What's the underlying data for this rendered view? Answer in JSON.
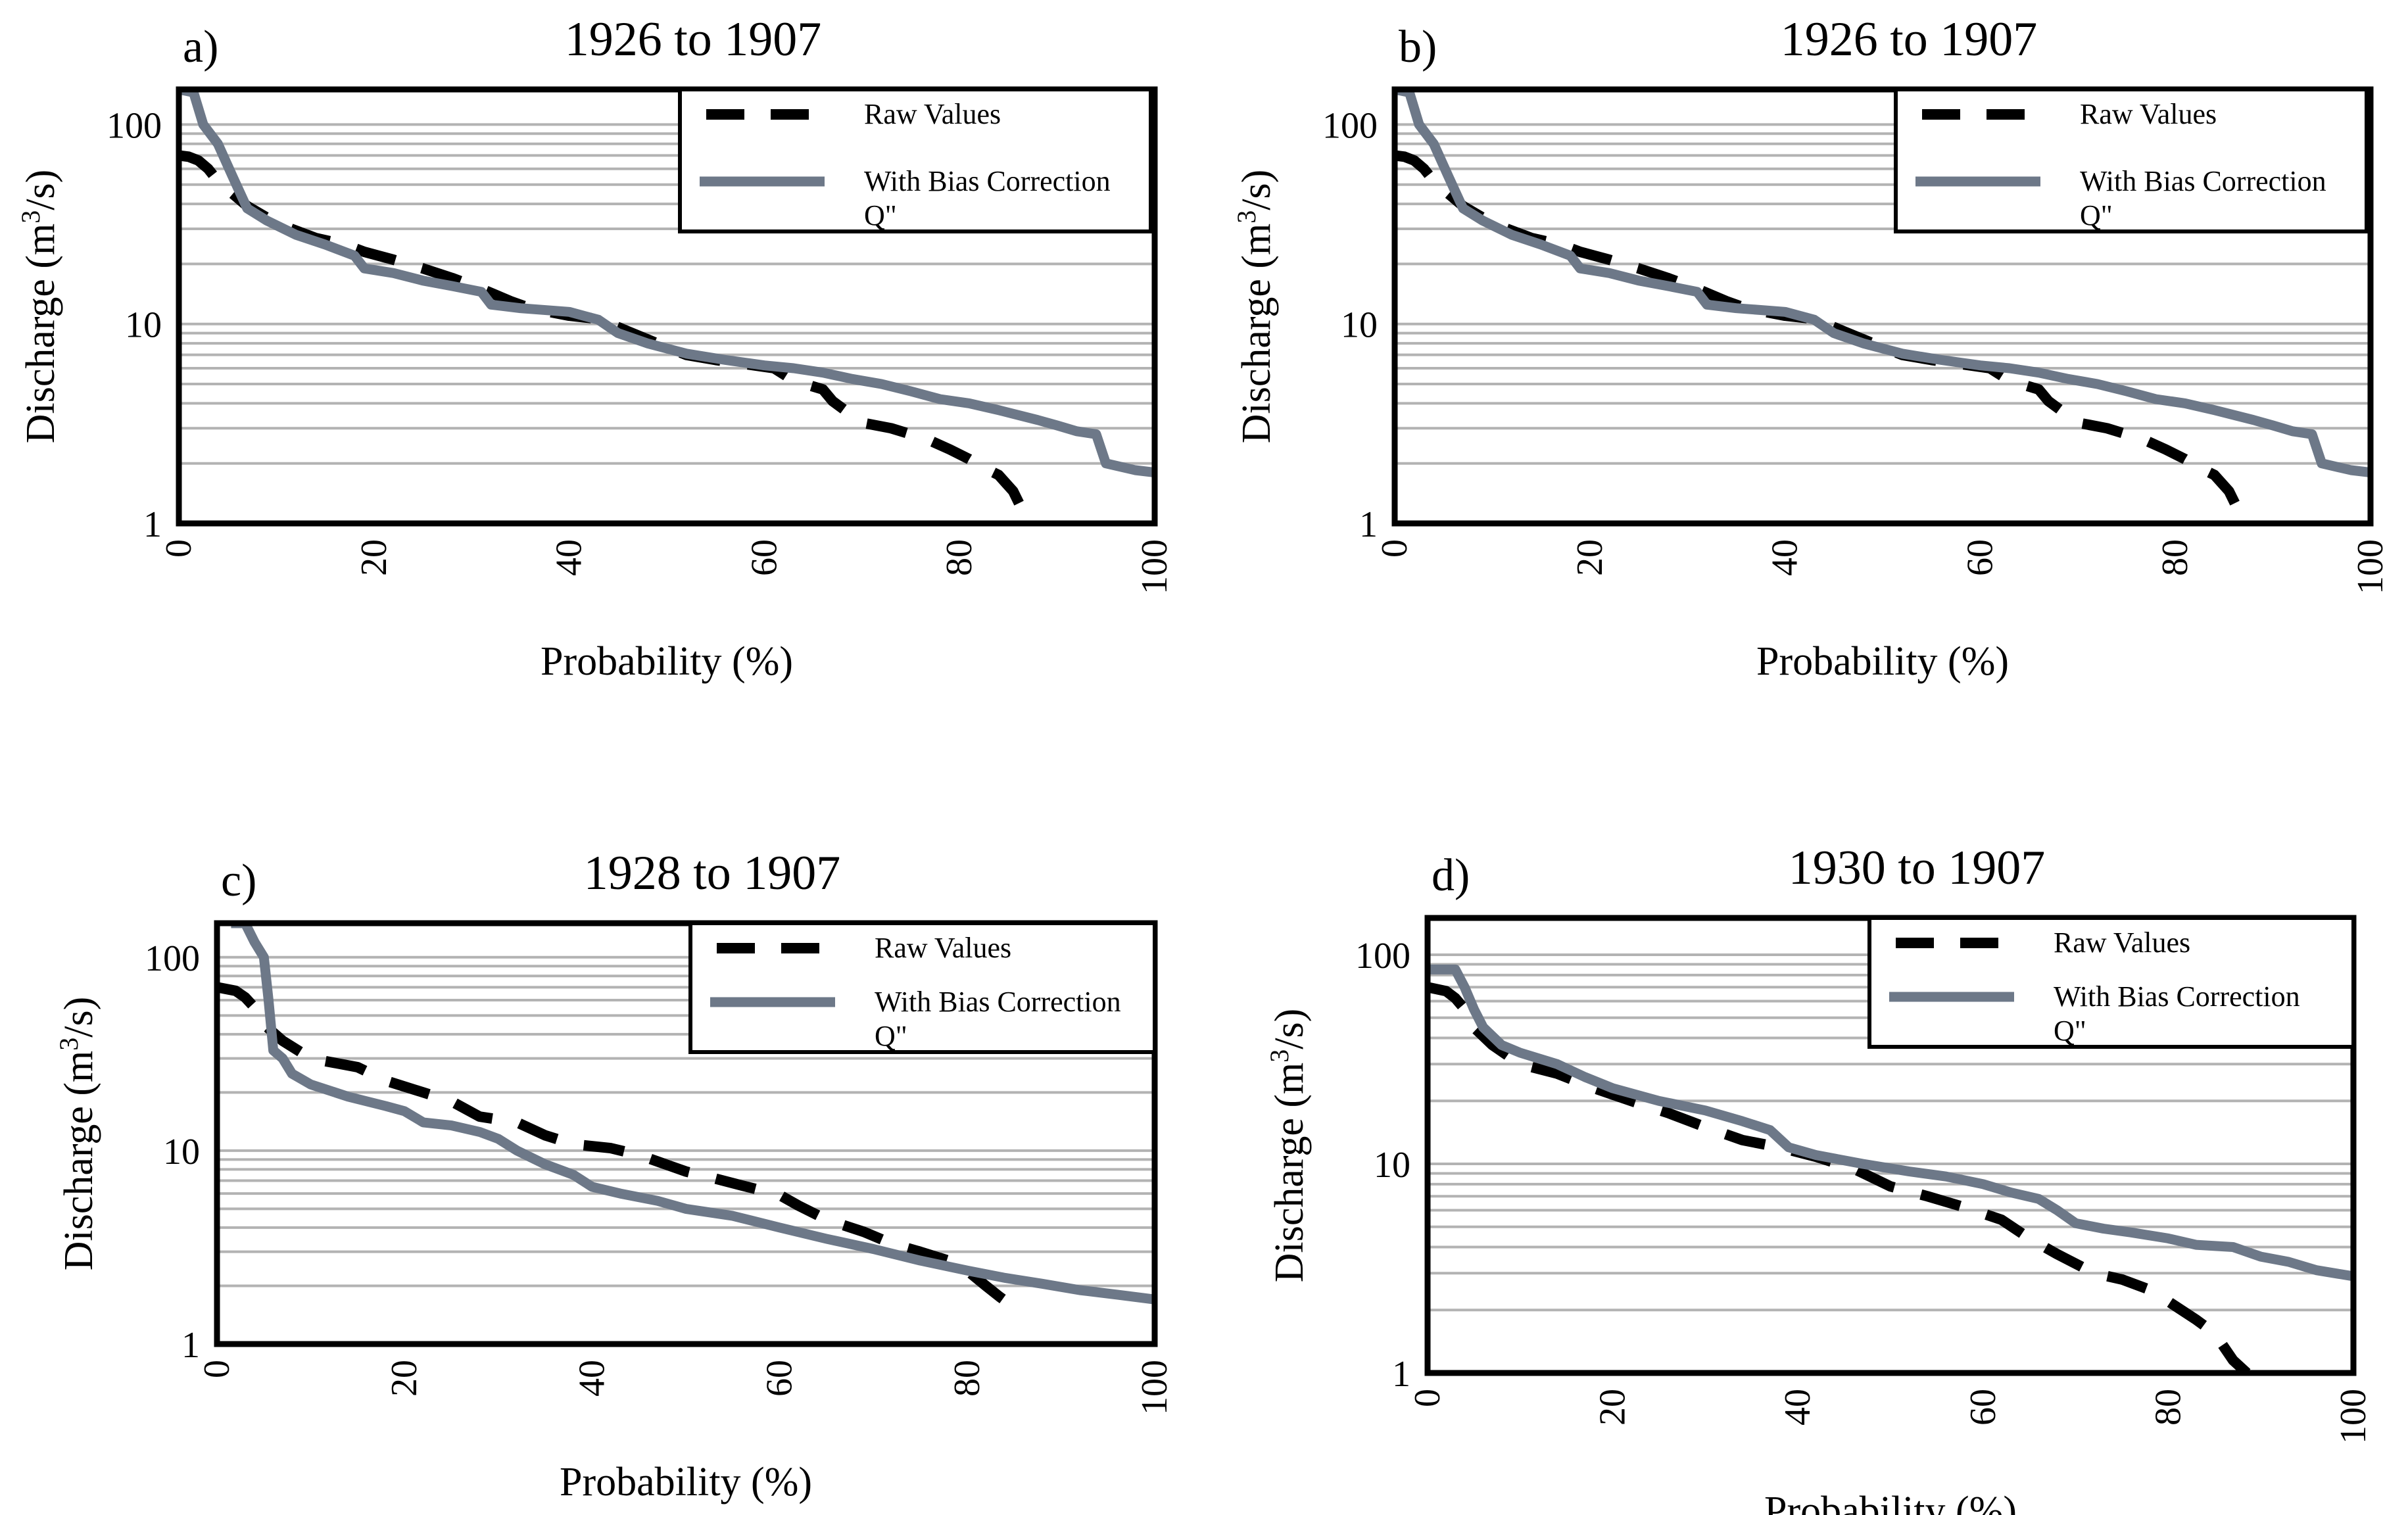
{
  "chart_data": [
    {
      "type": "line",
      "panel_label": "a)",
      "title": "1926 to 1907",
      "xlabel": "Probability (%)",
      "ylabel": "Discharge (m3/s)",
      "ylabel_parts": {
        "base": "Discharge (m",
        "sup": "3",
        "tail": "/s)"
      },
      "xlim": [
        0,
        100
      ],
      "ylim": [
        1,
        150
      ],
      "yscale": "log",
      "xticks": [
        "0",
        "20",
        "40",
        "60",
        "80",
        "100"
      ],
      "yticks": [
        "1",
        "10",
        "100"
      ],
      "grid": true,
      "legend_position": "top-right",
      "legend": {
        "raw": "Raw Values",
        "corrected": "With Bias Correction",
        "corrected_sub": "Q\""
      },
      "series": [
        {
          "name": "Raw Values",
          "style": "dashed",
          "color": "#000000",
          "x": [
            0,
            1,
            2,
            3,
            4,
            7,
            10,
            14,
            17,
            19,
            22,
            25,
            28,
            31,
            34,
            36,
            40,
            43,
            46,
            49,
            52,
            55,
            58,
            61,
            63,
            66,
            67,
            70,
            73,
            75,
            77,
            79,
            81,
            82.5,
            84,
            85.5,
            86.5,
            87.5
          ],
          "values": [
            70,
            69,
            66,
            60,
            52,
            39,
            32,
            27,
            25,
            23,
            21,
            19,
            17,
            15,
            13,
            12,
            11,
            10.6,
            9.2,
            8.0,
            7.0,
            6.6,
            6.3,
            6.0,
            5.2,
            4.7,
            4.1,
            3.2,
            3.0,
            2.8,
            2.6,
            2.35,
            2.1,
            1.9,
            1.75,
            1.45,
            1.15,
            1.0
          ]
        },
        {
          "name": "With Bias Correction",
          "style": "solid",
          "color": "#6d7888",
          "x": [
            0,
            1.5,
            2.5,
            4,
            5.5,
            7,
            9,
            12,
            15,
            18,
            19,
            22,
            25,
            28,
            31,
            32,
            35,
            40,
            43,
            45,
            48,
            52,
            56,
            60,
            63,
            66,
            69,
            72,
            75,
            78,
            81,
            84,
            88,
            90,
            92,
            94,
            95,
            98,
            100
          ],
          "values": [
            150,
            145,
            100,
            80,
            55,
            38,
            33,
            28,
            25,
            22,
            19,
            18,
            16.5,
            15.5,
            14.5,
            12.5,
            12,
            11.5,
            10.5,
            9,
            8,
            7.1,
            6.6,
            6.2,
            6,
            5.7,
            5.3,
            5.0,
            4.6,
            4.2,
            4.0,
            3.7,
            3.3,
            3.1,
            2.9,
            2.8,
            2.0,
            1.85,
            1.8
          ]
        }
      ]
    },
    {
      "type": "line",
      "panel_label": "b)",
      "title": "1926 to 1907",
      "xlabel": "Probability (%)",
      "ylabel": "Discharge (m3/s)",
      "ylabel_parts": {
        "base": "Discharge (m",
        "sup": "3",
        "tail": "/s)"
      },
      "xlim": [
        0,
        100
      ],
      "ylim": [
        1,
        150
      ],
      "yscale": "log",
      "xticks": [
        "0",
        "20",
        "40",
        "60",
        "80",
        "100"
      ],
      "yticks": [
        "1",
        "10",
        "100"
      ],
      "grid": true,
      "legend_position": "top-right",
      "legend": {
        "raw": "Raw Values",
        "corrected": "With Bias Correction",
        "corrected_sub": "Q\""
      },
      "series": [
        {
          "name": "Raw Values",
          "style": "dashed",
          "color": "#000000",
          "x": [
            0,
            1,
            2,
            3,
            4,
            7,
            10,
            14,
            17,
            19,
            22,
            25,
            28,
            31,
            34,
            36,
            40,
            43,
            46,
            49,
            52,
            55,
            58,
            61,
            63,
            66,
            67,
            70,
            73,
            75,
            77,
            79,
            81,
            82.5,
            84,
            85.5,
            86.5,
            87.5
          ],
          "values": [
            70,
            69,
            66,
            60,
            52,
            39,
            32,
            27,
            25,
            23,
            21,
            19,
            17,
            15,
            13,
            12,
            11,
            10.6,
            9.2,
            8.0,
            7.0,
            6.6,
            6.3,
            6.0,
            5.2,
            4.7,
            4.1,
            3.2,
            3.0,
            2.8,
            2.6,
            2.35,
            2.1,
            1.9,
            1.75,
            1.45,
            1.15,
            1.0
          ]
        },
        {
          "name": "With Bias Correction",
          "style": "solid",
          "color": "#6d7888",
          "x": [
            0,
            1.5,
            2.5,
            4,
            5.5,
            7,
            9,
            12,
            15,
            18,
            19,
            22,
            25,
            28,
            31,
            32,
            35,
            40,
            43,
            45,
            48,
            52,
            56,
            60,
            63,
            66,
            69,
            72,
            75,
            78,
            81,
            84,
            88,
            90,
            92,
            94,
            95,
            98,
            100
          ],
          "values": [
            150,
            145,
            100,
            80,
            55,
            38,
            33,
            28,
            25,
            22,
            19,
            18,
            16.5,
            15.5,
            14.5,
            12.5,
            12,
            11.5,
            10.5,
            9,
            8,
            7.1,
            6.6,
            6.2,
            6,
            5.7,
            5.3,
            5.0,
            4.6,
            4.2,
            4.0,
            3.7,
            3.3,
            3.1,
            2.9,
            2.8,
            2.0,
            1.85,
            1.8
          ]
        }
      ]
    },
    {
      "type": "line",
      "panel_label": "c)",
      "title": "1928 to 1907",
      "xlabel": "Probability (%)",
      "ylabel": "Discharge (m3/s)",
      "ylabel_parts": {
        "base": "Discharge (m",
        "sup": "3",
        "tail": "/s)"
      },
      "xlim": [
        0,
        100
      ],
      "ylim": [
        1,
        150
      ],
      "yscale": "log",
      "xticks": [
        "0",
        "20",
        "40",
        "60",
        "80",
        "100"
      ],
      "yticks": [
        "1",
        "10",
        "100"
      ],
      "grid": true,
      "legend_position": "top-right",
      "legend": {
        "raw": "Raw Values",
        "corrected": "With Bias Correction",
        "corrected_sub": "Q\""
      },
      "series": [
        {
          "name": "Raw Values",
          "style": "dashed",
          "color": "#000000",
          "x": [
            0,
            2,
            3,
            4,
            5,
            7,
            10,
            15,
            18,
            22,
            25,
            28,
            32,
            35,
            38,
            42,
            45,
            50,
            53,
            56,
            60,
            62,
            65,
            69,
            72,
            75,
            78,
            80,
            82,
            83.5,
            85
          ],
          "values": [
            70,
            67,
            62,
            55,
            45,
            37,
            30,
            27,
            23,
            20,
            18,
            15,
            14,
            12,
            10.8,
            10.3,
            9.5,
            7.8,
            7.2,
            6.6,
            5.9,
            5.2,
            4.4,
            3.8,
            3.3,
            3.0,
            2.7,
            2.4,
            2.0,
            1.75,
            1.55
          ]
        },
        {
          "name": "With Bias Correction",
          "style": "solid",
          "color": "#6d7888",
          "x": [
            1.5,
            3,
            4,
            5,
            5.5,
            6,
            7,
            8,
            10,
            14,
            18,
            20,
            22,
            25,
            28,
            30,
            32,
            35,
            38,
            40,
            43,
            47,
            50,
            55,
            60,
            65,
            70,
            75,
            80,
            84,
            88,
            92,
            96,
            100
          ],
          "values": [
            150,
            150,
            120,
            100,
            60,
            33,
            30,
            25,
            22,
            19,
            17,
            16,
            14,
            13.5,
            12.5,
            11.5,
            10,
            8.5,
            7.5,
            6.5,
            6.0,
            5.5,
            5.0,
            4.6,
            4.0,
            3.5,
            3.1,
            2.7,
            2.4,
            2.2,
            2.05,
            1.9,
            1.8,
            1.7
          ]
        }
      ]
    },
    {
      "type": "line",
      "panel_label": "d)",
      "title": "1930 to 1907",
      "xlabel": "Probability (%)",
      "ylabel": "Discharge (m3/s)",
      "ylabel_parts": {
        "base": "Discharge (m",
        "sup": "3",
        "tail": "/s)"
      },
      "xlim": [
        0,
        100
      ],
      "ylim": [
        1,
        150
      ],
      "yscale": "log",
      "xticks": [
        "0",
        "20",
        "40",
        "60",
        "80",
        "100"
      ],
      "yticks": [
        "1",
        "10",
        "100"
      ],
      "grid": true,
      "legend_position": "top-right",
      "legend": {
        "raw": "Raw Values",
        "corrected": "With Bias Correction",
        "corrected_sub": "Q\""
      },
      "series": [
        {
          "name": "Raw Values",
          "style": "dashed",
          "color": "#000000",
          "x": [
            0,
            2,
            3,
            4,
            5,
            7,
            10,
            14,
            18,
            22,
            26,
            30,
            34,
            38,
            42,
            46,
            50,
            54,
            58,
            62,
            65,
            68,
            72,
            75,
            78,
            80,
            83,
            85,
            87,
            88.5
          ],
          "values": [
            70,
            67,
            62,
            55,
            45,
            37,
            30,
            27,
            23,
            20,
            17.5,
            15,
            13,
            12,
            10.8,
            9.5,
            7.8,
            7.0,
            6.2,
            5.4,
            4.4,
            3.7,
            3.0,
            2.8,
            2.5,
            2.2,
            1.8,
            1.55,
            1.15,
            1.0
          ]
        },
        {
          "name": "With Bias Correction",
          "style": "solid",
          "color": "#6d7888",
          "x": [
            0,
            3,
            4,
            5,
            6,
            8,
            10,
            14,
            17,
            20,
            25,
            30,
            34,
            37,
            39,
            42,
            47,
            52,
            56,
            60,
            63,
            66,
            68,
            70,
            73,
            76,
            80,
            83,
            87,
            90,
            93,
            96,
            100
          ],
          "values": [
            85,
            85,
            70,
            55,
            45,
            37,
            34,
            30,
            26,
            23,
            20,
            18,
            16,
            14.5,
            12,
            11,
            10,
            9.2,
            8.7,
            8.0,
            7.3,
            6.8,
            6.0,
            5.2,
            4.9,
            4.7,
            4.4,
            4.1,
            4.0,
            3.6,
            3.4,
            3.1,
            2.9
          ]
        }
      ]
    }
  ]
}
